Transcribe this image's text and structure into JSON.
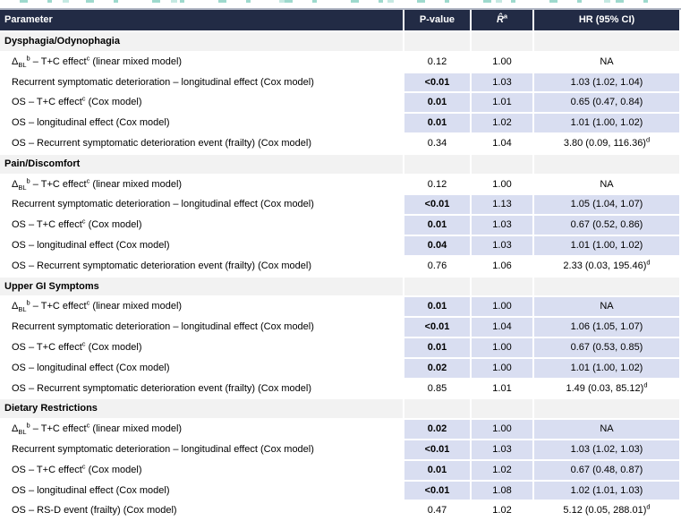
{
  "colors": {
    "header_navy": "#222B45",
    "row_highlight": "#D9DEF1",
    "section_gray": "#F2F2F2",
    "remnant_teal": "#9ED9CD",
    "remnant_teal_light": "#C5E9E2",
    "top_border_gray": "#B3B8C5"
  },
  "header": {
    "columns": [
      {
        "id": "parameter",
        "label_parts": [
          {
            "text": "Parameter"
          }
        ]
      },
      {
        "id": "p_value",
        "label_parts": [
          {
            "text": "P-value"
          }
        ]
      },
      {
        "id": "r_hat",
        "label_parts": [
          {
            "text": "R̂",
            "style": "italic"
          },
          {
            "text": "a",
            "style": "sup"
          }
        ]
      },
      {
        "id": "hr_ci",
        "label_parts": [
          {
            "text": "HR (95% CI)"
          }
        ]
      }
    ]
  },
  "sections": [
    {
      "title": "Dysphagia/Odynophagia",
      "rows": [
        {
          "label_parts": [
            {
              "text": "Δ"
            },
            {
              "text": "BL",
              "style": "sub"
            },
            {
              "text": "b",
              "style": "sup"
            },
            {
              "text": " – T+C effect"
            },
            {
              "text": "c",
              "style": "sup"
            },
            {
              "text": " (linear mixed model)"
            }
          ],
          "p": "0.12",
          "r": "1.00",
          "hr_parts": [
            {
              "text": "NA"
            }
          ],
          "highlight": false
        },
        {
          "label_parts": [
            {
              "text": "Recurrent symptomatic deterioration – longitudinal effect (Cox model)"
            }
          ],
          "p": "<0.01",
          "r": "1.03",
          "hr_parts": [
            {
              "text": "1.03 (1.02, 1.04)"
            }
          ],
          "highlight": true
        },
        {
          "label_parts": [
            {
              "text": "OS – T+C effect"
            },
            {
              "text": "c",
              "style": "sup"
            },
            {
              "text": " (Cox model)"
            }
          ],
          "p": "0.01",
          "r": "1.01",
          "hr_parts": [
            {
              "text": "0.65 (0.47, 0.84)"
            }
          ],
          "highlight": true
        },
        {
          "label_parts": [
            {
              "text": "OS – longitudinal effect (Cox model)"
            }
          ],
          "p": "0.01",
          "r": "1.02",
          "hr_parts": [
            {
              "text": "1.01 (1.00, 1.02)"
            }
          ],
          "highlight": true
        },
        {
          "label_parts": [
            {
              "text": "OS – Recurrent symptomatic deterioration event (frailty) (Cox model)"
            }
          ],
          "p": "0.34",
          "r": "1.04",
          "hr_parts": [
            {
              "text": "3.80 (0.09, 116.36)"
            },
            {
              "text": "d",
              "style": "sup"
            }
          ],
          "highlight": false
        }
      ]
    },
    {
      "title": "Pain/Discomfort",
      "rows": [
        {
          "label_parts": [
            {
              "text": "Δ"
            },
            {
              "text": "BL",
              "style": "sub"
            },
            {
              "text": "b",
              "style": "sup"
            },
            {
              "text": " – T+C effect"
            },
            {
              "text": "c",
              "style": "sup"
            },
            {
              "text": " (linear mixed model)"
            }
          ],
          "p": "0.12",
          "r": "1.00",
          "hr_parts": [
            {
              "text": "NA"
            }
          ],
          "highlight": false
        },
        {
          "label_parts": [
            {
              "text": "Recurrent symptomatic deterioration – longitudinal effect (Cox model)"
            }
          ],
          "p": "<0.01",
          "r": "1.13",
          "hr_parts": [
            {
              "text": "1.05 (1.04, 1.07)"
            }
          ],
          "highlight": true
        },
        {
          "label_parts": [
            {
              "text": "OS – T+C effect"
            },
            {
              "text": "c",
              "style": "sup"
            },
            {
              "text": " (Cox model)"
            }
          ],
          "p": "0.01",
          "r": "1.03",
          "hr_parts": [
            {
              "text": "0.67 (0.52, 0.86)"
            }
          ],
          "highlight": true
        },
        {
          "label_parts": [
            {
              "text": "OS – longitudinal effect (Cox model)"
            }
          ],
          "p": "0.04",
          "r": "1.03",
          "hr_parts": [
            {
              "text": "1.01 (1.00, 1.02)"
            }
          ],
          "highlight": true
        },
        {
          "label_parts": [
            {
              "text": "OS – Recurrent symptomatic deterioration event (frailty) (Cox model)"
            }
          ],
          "p": "0.76",
          "r": "1.06",
          "hr_parts": [
            {
              "text": "2.33 (0.03, 195.46)"
            },
            {
              "text": "d",
              "style": "sup"
            }
          ],
          "highlight": false
        }
      ]
    },
    {
      "title": "Upper GI Symptoms",
      "rows": [
        {
          "label_parts": [
            {
              "text": "Δ"
            },
            {
              "text": "BL",
              "style": "sub"
            },
            {
              "text": "b",
              "style": "sup"
            },
            {
              "text": " – T+C effect"
            },
            {
              "text": "c",
              "style": "sup"
            },
            {
              "text": " (linear mixed model)"
            }
          ],
          "p": "0.01",
          "r": "1.00",
          "hr_parts": [
            {
              "text": "NA"
            }
          ],
          "highlight": true
        },
        {
          "label_parts": [
            {
              "text": "Recurrent symptomatic deterioration – longitudinal effect (Cox model)"
            }
          ],
          "p": "<0.01",
          "r": "1.04",
          "hr_parts": [
            {
              "text": "1.06 (1.05, 1.07)"
            }
          ],
          "highlight": true
        },
        {
          "label_parts": [
            {
              "text": "OS – T+C effect"
            },
            {
              "text": "c",
              "style": "sup"
            },
            {
              "text": " (Cox model)"
            }
          ],
          "p": "0.01",
          "r": "1.00",
          "hr_parts": [
            {
              "text": "0.67 (0.53, 0.85)"
            }
          ],
          "highlight": true
        },
        {
          "label_parts": [
            {
              "text": "OS – longitudinal effect (Cox model)"
            }
          ],
          "p": "0.02",
          "r": "1.00",
          "hr_parts": [
            {
              "text": "1.01 (1.00, 1.02)"
            }
          ],
          "highlight": true
        },
        {
          "label_parts": [
            {
              "text": "OS – Recurrent symptomatic deterioration event (frailty) (Cox model)"
            }
          ],
          "p": "0.85",
          "r": "1.01",
          "hr_parts": [
            {
              "text": "1.49 (0.03, 85.12)"
            },
            {
              "text": "d",
              "style": "sup"
            }
          ],
          "highlight": false
        }
      ]
    },
    {
      "title": "Dietary Restrictions",
      "rows": [
        {
          "label_parts": [
            {
              "text": "Δ"
            },
            {
              "text": "BL",
              "style": "sub"
            },
            {
              "text": "b",
              "style": "sup"
            },
            {
              "text": " – T+C effect"
            },
            {
              "text": "c",
              "style": "sup"
            },
            {
              "text": " (linear mixed model)"
            }
          ],
          "p": "0.02",
          "r": "1.00",
          "hr_parts": [
            {
              "text": "NA"
            }
          ],
          "highlight": true
        },
        {
          "label_parts": [
            {
              "text": "Recurrent symptomatic deterioration – longitudinal effect (Cox model)"
            }
          ],
          "p": "<0.01",
          "r": "1.03",
          "hr_parts": [
            {
              "text": "1.03 (1.02, 1.03)"
            }
          ],
          "highlight": true
        },
        {
          "label_parts": [
            {
              "text": "OS – T+C effect"
            },
            {
              "text": "c",
              "style": "sup"
            },
            {
              "text": " (Cox model)"
            }
          ],
          "p": "0.01",
          "r": "1.02",
          "hr_parts": [
            {
              "text": "0.67 (0.48, 0.87)"
            }
          ],
          "highlight": true
        },
        {
          "label_parts": [
            {
              "text": "OS – longitudinal effect (Cox model)"
            }
          ],
          "p": "<0.01",
          "r": "1.08",
          "hr_parts": [
            {
              "text": "1.02 (1.01, 1.03)"
            }
          ],
          "highlight": true
        },
        {
          "label_parts": [
            {
              "text": "OS – RS-D event (frailty) (Cox model)"
            }
          ],
          "p": "0.47",
          "r": "1.02",
          "hr_parts": [
            {
              "text": "5.12 (0.05, 288.01)"
            },
            {
              "text": "d",
              "style": "sup"
            }
          ],
          "highlight": false
        }
      ]
    }
  ]
}
